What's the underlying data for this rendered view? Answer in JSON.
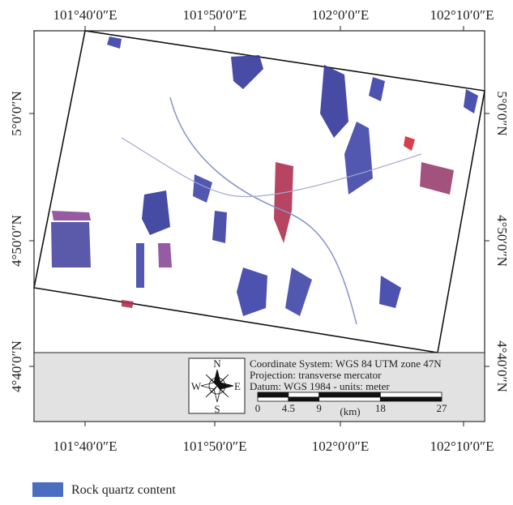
{
  "map": {
    "top_labels": [
      "101°40′0″E",
      "101°50′0″E",
      "102°0′0″E",
      "102°10′0″E"
    ],
    "bottom_labels": [
      "101°40′0″E",
      "101°50′0″E",
      "102°0′0″E",
      "102°10′0″E"
    ],
    "left_labels": [
      "5°0′0″N",
      "4°50′0″N",
      "4°40′0″N"
    ],
    "right_labels": [
      "5°0′0″N",
      "4°50′0″N",
      "4°40′0″N"
    ],
    "info": {
      "lines": [
        "Coordinate System: WGS 84 UTM zone 47N",
        "Projection: transverse mercator",
        "Datum: WGS 1984 - units: meter"
      ],
      "compass": {
        "n": "N",
        "s": "S",
        "e": "E",
        "w": "W"
      },
      "scale": {
        "ticks": [
          0,
          4.5,
          9,
          18,
          27
        ],
        "unit": "(km)"
      }
    }
  },
  "legend": {
    "label": "Rock quartz content",
    "color": "#4a6fc0"
  }
}
